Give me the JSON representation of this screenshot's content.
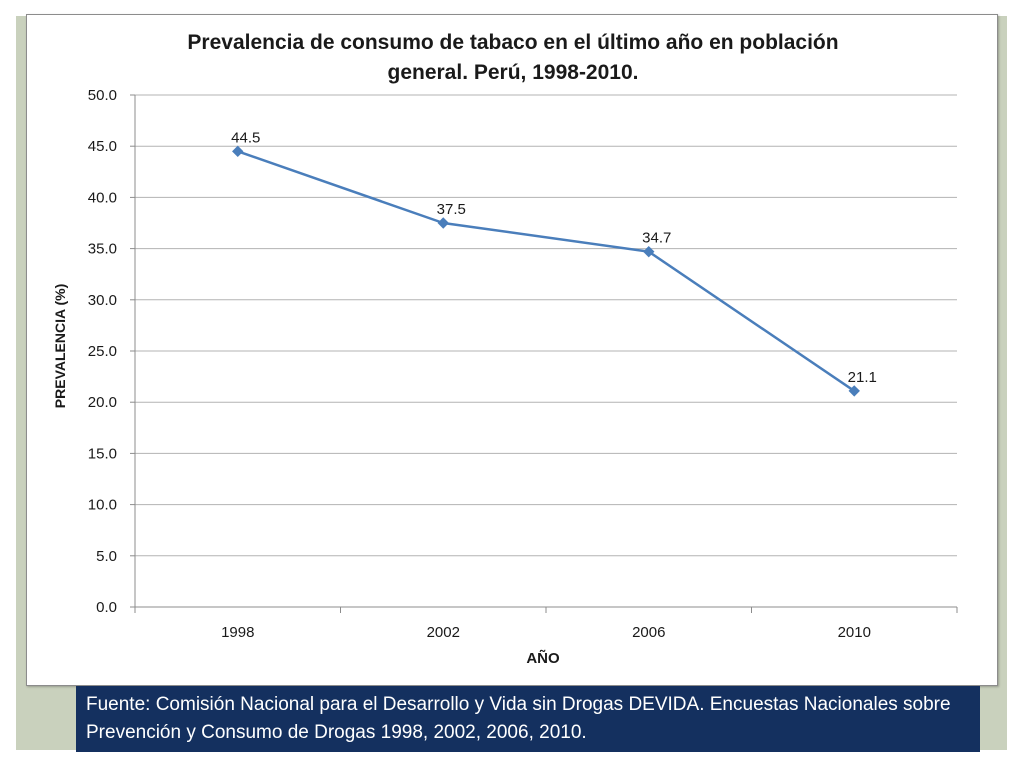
{
  "chart_data": {
    "type": "line",
    "title_line1": "Prevalencia de consumo de tabaco en el último año en población",
    "title_line2": "general. Perú, 1998-2010.",
    "xlabel": "AÑO",
    "ylabel": "PREVALENCIA  (%)",
    "categories": [
      "1998",
      "2002",
      "2006",
      "2010"
    ],
    "series": [
      {
        "name": "Prevalencia",
        "values": [
          44.5,
          37.5,
          34.7,
          21.1
        ],
        "labels": [
          "44.5",
          "37.5",
          "34.7",
          "21.1"
        ],
        "color": "#4a7ebb"
      }
    ],
    "ylim": [
      0,
      50
    ],
    "yticks": [
      "0.0",
      "5.0",
      "10.0",
      "15.0",
      "20.0",
      "25.0",
      "30.0",
      "35.0",
      "40.0",
      "45.0",
      "50.0"
    ],
    "grid": true
  },
  "source": {
    "text": "Fuente: Comisión Nacional para el Desarrollo y Vida sin Drogas DEVIDA. Encuestas Nacionales sobre Prevención y Consumo de Drogas 1998, 2002, 2006, 2010."
  },
  "colors": {
    "frame": "#c9d1bd",
    "source_bg": "#14305f",
    "line": "#4a7ebb",
    "grid": "#b3b3b3"
  }
}
